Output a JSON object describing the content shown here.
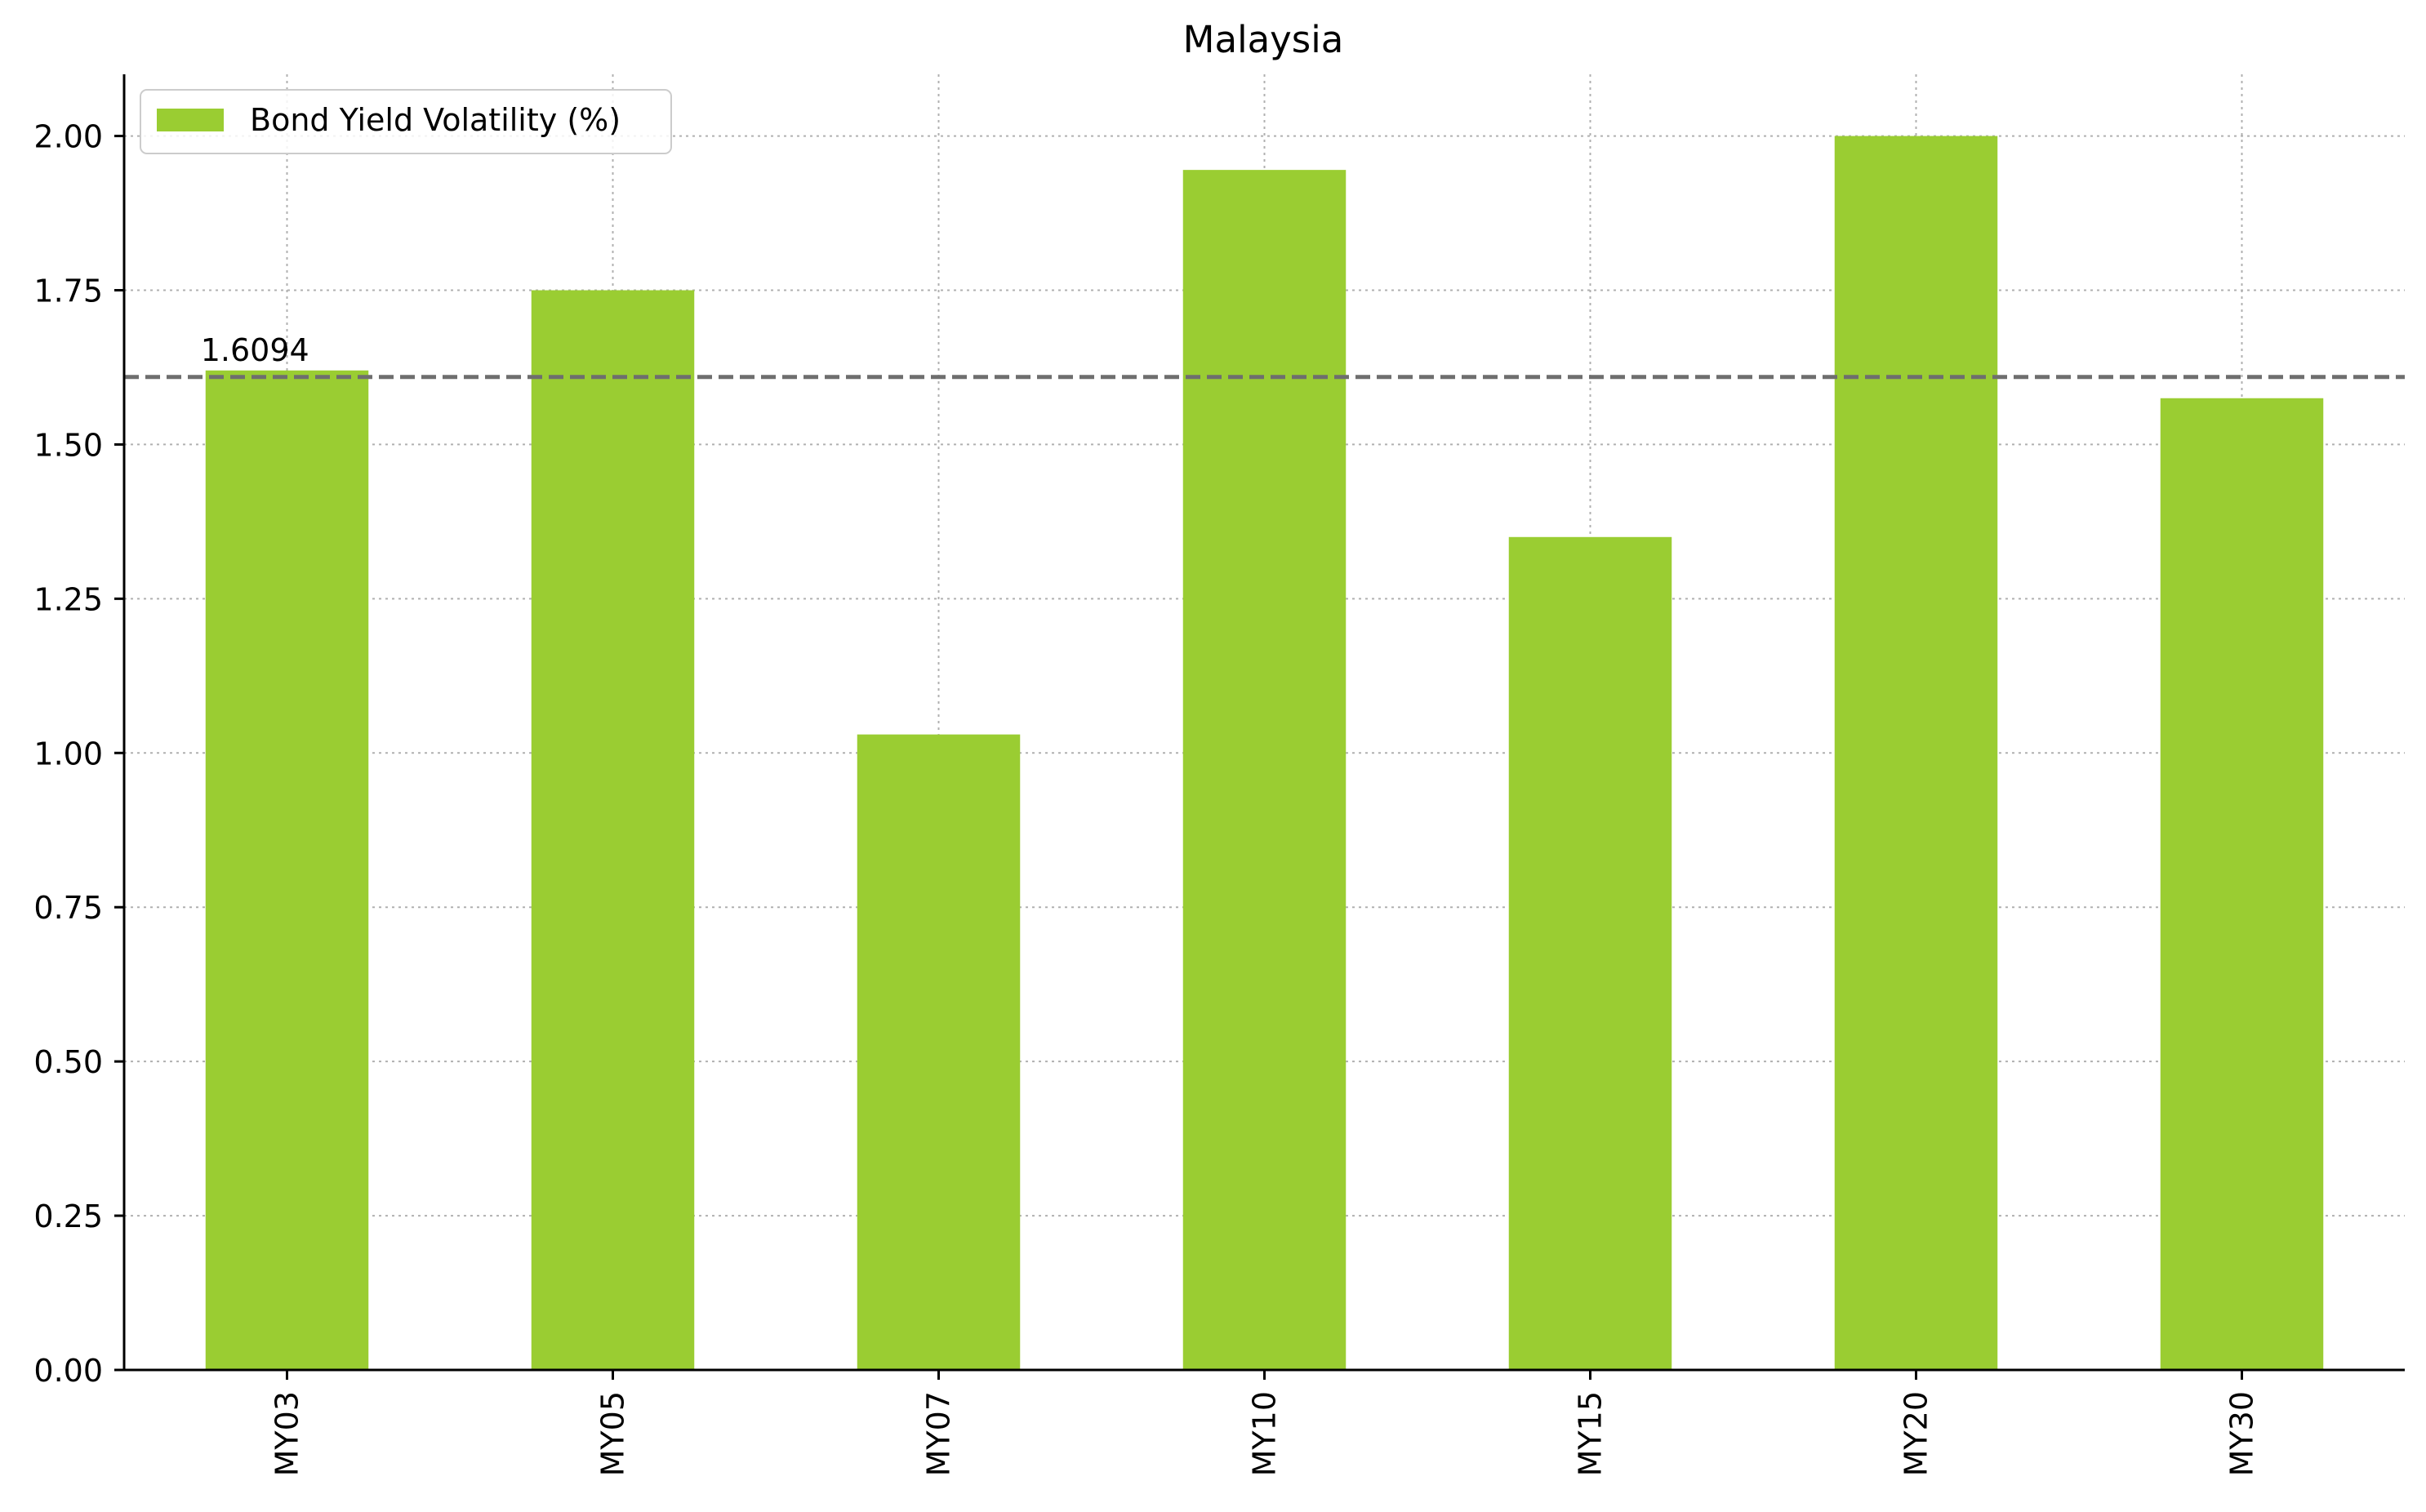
{
  "chart_data": {
    "type": "bar",
    "title": "Malaysia",
    "xlabel": "",
    "ylabel": "",
    "categories": [
      "MY03",
      "MY05",
      "MY07",
      "MY10",
      "MY15",
      "MY20",
      "MY30"
    ],
    "series": [
      {
        "name": "Bond Yield Volatility (%)",
        "values": [
          1.62,
          1.75,
          1.03,
          1.945,
          1.35,
          2.0,
          1.575
        ],
        "color": "#9acd32"
      }
    ],
    "reference_line": {
      "value": 1.6094,
      "label": "1.6094",
      "color": "#6e6e6e",
      "style": "dashed"
    },
    "ylim": [
      0,
      2.1
    ],
    "yticks": [
      "0.00",
      "0.25",
      "0.50",
      "0.75",
      "1.00",
      "1.25",
      "1.50",
      "1.75",
      "2.00"
    ],
    "ytick_values": [
      0,
      0.25,
      0.5,
      0.75,
      1.0,
      1.25,
      1.5,
      1.75,
      2.0
    ],
    "grid": true,
    "grid_color": "#b0b0b0",
    "legend_position": "top-left",
    "xtick_rotation": "vertical"
  }
}
